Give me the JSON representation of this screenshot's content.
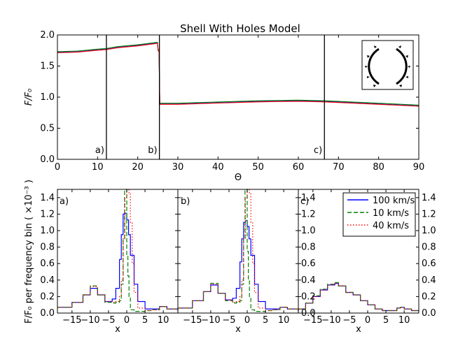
{
  "chart_data": [
    {
      "type": "line",
      "title": "Shell With Holes Model",
      "xlabel": "Θ",
      "ylabel": "F/F₀",
      "xlim": [
        0,
        90
      ],
      "ylim": [
        0,
        2.0
      ],
      "xticks": [
        "0",
        "10",
        "20",
        "30",
        "40",
        "50",
        "60",
        "70",
        "80",
        "90"
      ],
      "yticks": [
        "0.0",
        "0.5",
        "1.0",
        "1.5",
        "2.0"
      ],
      "markers": [
        {
          "label": "a)",
          "x": 12.2
        },
        {
          "label": "b)",
          "x": 25.4
        },
        {
          "label": "c)",
          "x": 66.5
        }
      ],
      "series_colors": [
        "#0000ff",
        "#008000",
        "#ff0000"
      ],
      "series": [
        {
          "x": [
            0,
            5,
            10,
            12.2,
            15,
            20,
            24.9,
            25.1,
            25.3,
            25.5,
            30,
            40,
            50,
            60,
            66.5,
            70,
            80,
            90
          ],
          "y": [
            1.72,
            1.73,
            1.76,
            1.77,
            1.8,
            1.83,
            1.87,
            1.75,
            1.74,
            0.89,
            0.89,
            0.91,
            0.93,
            0.94,
            0.93,
            0.92,
            0.89,
            0.86
          ]
        }
      ]
    },
    {
      "type": "line",
      "panel": "a)",
      "xlabel": "x",
      "ylabel": "F/F₀ per frequency bin ( ×10⁻³ )",
      "xlim": [
        -19,
        14
      ],
      "ylim": [
        0,
        1.5
      ],
      "xticks": [
        "−15",
        "−10",
        "−5",
        "0",
        "5",
        "10"
      ],
      "yticks": [
        "0.0",
        "0.2",
        "0.4",
        "0.6",
        "0.8",
        "1.0",
        "1.2",
        "1.4"
      ],
      "series": [
        {
          "name": "100 km/s",
          "color": "#0000ff",
          "x": [
            -19,
            -15,
            -12,
            -10,
            -8,
            -6,
            -4,
            -3,
            -2,
            -1.5,
            -1,
            -0.5,
            0,
            0.5,
            1,
            2,
            3,
            5,
            7,
            9,
            11,
            14
          ],
          "y": [
            0.07,
            0.13,
            0.22,
            0.3,
            0.22,
            0.14,
            0.17,
            0.3,
            0.65,
            0.95,
            1.2,
            1.21,
            1.13,
            0.95,
            0.7,
            0.35,
            0.14,
            0.05,
            0.05,
            0.08,
            0.05,
            0.03
          ]
        },
        {
          "name": "10 km/s",
          "color": "#008000",
          "x": [
            -19,
            -15,
            -12,
            -10,
            -8,
            -6,
            -4,
            -3,
            -2,
            -1.5,
            -1,
            -0.6,
            -0.3,
            0,
            0.3,
            0.6,
            1,
            2,
            3,
            5,
            7,
            9,
            11,
            14
          ],
          "y": [
            0.07,
            0.13,
            0.22,
            0.33,
            0.22,
            0.13,
            0.12,
            0.13,
            0.15,
            0.35,
            0.9,
            1.5,
            1.5,
            0.7,
            0.45,
            0.2,
            0.04,
            0.02,
            0.02,
            0.03,
            0.04,
            0.08,
            0.05,
            0.03
          ]
        },
        {
          "name": "40 km/s",
          "color": "#ff0000",
          "x": [
            -19,
            -15,
            -12,
            -10,
            -8,
            -6,
            -4,
            -3,
            -2,
            -1.5,
            -1,
            -0.5,
            0,
            0.3,
            0.6,
            1,
            1.5,
            2,
            3,
            5,
            7,
            9,
            11,
            14
          ],
          "y": [
            0.07,
            0.13,
            0.22,
            0.32,
            0.22,
            0.14,
            0.13,
            0.14,
            0.2,
            0.4,
            0.9,
            1.4,
            1.5,
            1.5,
            1.45,
            1.1,
            0.6,
            0.25,
            0.06,
            0.03,
            0.04,
            0.08,
            0.05,
            0.03
          ]
        }
      ]
    },
    {
      "type": "line",
      "panel": "b)",
      "xlabel": "x",
      "xlim": [
        -19,
        14
      ],
      "ylim": [
        0,
        1.5
      ],
      "xticks": [
        "−15",
        "−10",
        "−5",
        "0",
        "5",
        "10"
      ],
      "series": [
        {
          "name": "100 km/s",
          "color": "#0000ff",
          "x": [
            -19,
            -15,
            -12,
            -10,
            -8,
            -6,
            -4,
            -3,
            -2,
            -1.5,
            -1,
            -0.5,
            0,
            0.5,
            1,
            2,
            3,
            5,
            7,
            9,
            11,
            14
          ],
          "y": [
            0.06,
            0.15,
            0.26,
            0.34,
            0.24,
            0.16,
            0.18,
            0.3,
            0.62,
            0.9,
            1.1,
            1.12,
            1.05,
            0.9,
            0.7,
            0.35,
            0.14,
            0.05,
            0.05,
            0.07,
            0.05,
            0.02
          ]
        },
        {
          "name": "10 km/s",
          "color": "#008000",
          "x": [
            -19,
            -15,
            -12,
            -10,
            -8,
            -6,
            -4,
            -3,
            -2,
            -1.5,
            -1,
            -0.6,
            -0.3,
            0,
            0.3,
            0.6,
            1,
            2,
            3,
            5,
            7,
            9,
            11,
            14
          ],
          "y": [
            0.06,
            0.15,
            0.26,
            0.36,
            0.24,
            0.15,
            0.12,
            0.13,
            0.15,
            0.35,
            0.9,
            1.5,
            1.5,
            0.75,
            0.4,
            0.18,
            0.04,
            0.02,
            0.02,
            0.03,
            0.04,
            0.07,
            0.05,
            0.02
          ]
        },
        {
          "name": "40 km/s",
          "color": "#ff0000",
          "x": [
            -19,
            -15,
            -12,
            -10,
            -8,
            -6,
            -4,
            -3,
            -2,
            -1.5,
            -1,
            -0.5,
            0,
            0.3,
            0.6,
            1,
            1.5,
            2,
            3,
            5,
            7,
            9,
            11,
            14
          ],
          "y": [
            0.06,
            0.15,
            0.26,
            0.35,
            0.24,
            0.16,
            0.13,
            0.14,
            0.2,
            0.4,
            0.9,
            1.4,
            1.5,
            1.5,
            1.45,
            1.1,
            0.6,
            0.25,
            0.06,
            0.03,
            0.04,
            0.07,
            0.05,
            0.02
          ]
        }
      ]
    },
    {
      "type": "line",
      "panel": "c)",
      "xlabel": "x",
      "xlim": [
        -19,
        14
      ],
      "ylim": [
        0,
        1.5
      ],
      "xticks": [
        "−15",
        "−10",
        "−5",
        "0",
        "5",
        "10"
      ],
      "yticks": [
        "0.0",
        "0.2",
        "0.4",
        "0.6",
        "0.8",
        "1.0",
        "1.2",
        "1.4"
      ],
      "legend": "top-right",
      "series": [
        {
          "name": "100 km/s",
          "color": "#0000ff",
          "x": [
            -19,
            -17,
            -15,
            -13,
            -11,
            -9,
            -8,
            -6,
            -4,
            -2,
            0,
            2,
            4,
            6,
            8,
            9,
            10,
            12,
            14
          ],
          "y": [
            0.05,
            0.12,
            0.2,
            0.28,
            0.34,
            0.36,
            0.33,
            0.25,
            0.22,
            0.15,
            0.1,
            0.05,
            0.03,
            0.03,
            0.06,
            0.07,
            0.05,
            0.03,
            0.02
          ]
        },
        {
          "name": "10 km/s",
          "color": "#008000",
          "x": [
            -19,
            -17,
            -15,
            -13,
            -11,
            -9,
            -8,
            -6,
            -4,
            -2,
            0,
            2,
            4,
            6,
            8,
            9,
            10,
            12,
            14
          ],
          "y": [
            0.05,
            0.12,
            0.21,
            0.29,
            0.35,
            0.37,
            0.33,
            0.25,
            0.22,
            0.15,
            0.1,
            0.05,
            0.03,
            0.03,
            0.06,
            0.07,
            0.05,
            0.03,
            0.02
          ]
        },
        {
          "name": "40 km/s",
          "color": "#ff0000",
          "x": [
            -19,
            -17,
            -15,
            -13,
            -11,
            -9,
            -8,
            -6,
            -4,
            -2,
            0,
            2,
            4,
            6,
            8,
            9,
            10,
            12,
            14
          ],
          "y": [
            0.05,
            0.12,
            0.2,
            0.28,
            0.34,
            0.36,
            0.33,
            0.25,
            0.22,
            0.15,
            0.1,
            0.05,
            0.03,
            0.03,
            0.06,
            0.07,
            0.05,
            0.03,
            0.02
          ]
        }
      ]
    }
  ]
}
